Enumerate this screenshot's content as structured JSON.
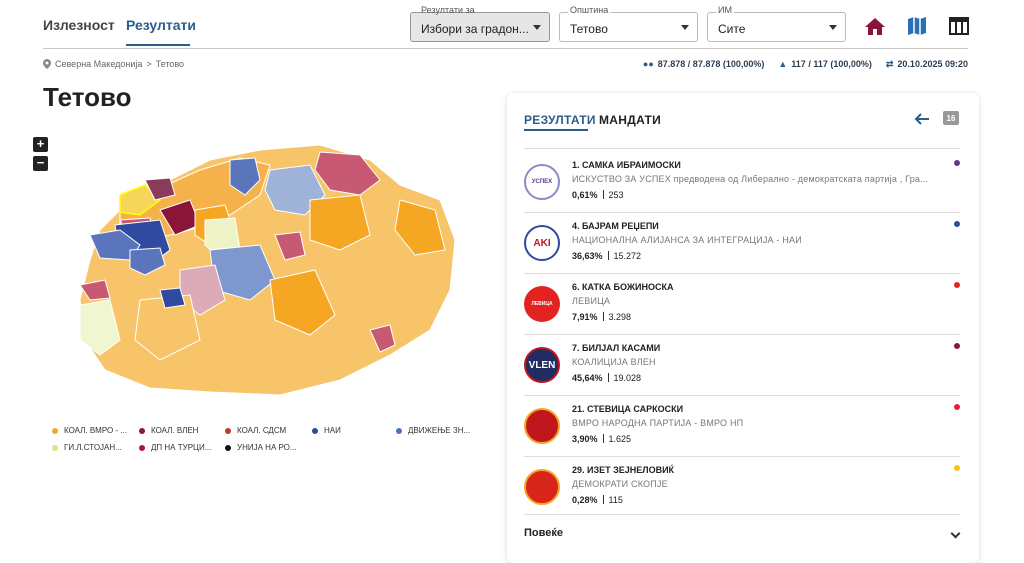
{
  "tabs": [
    {
      "label": "Излезност"
    },
    {
      "label": "Резултати"
    }
  ],
  "filters": {
    "results_for": {
      "label": "Резултати за",
      "value": "Избори за градон..."
    },
    "municipality": {
      "label": "Општина",
      "value": "Тетово"
    },
    "im": {
      "label": "ИМ",
      "value": "Сите"
    }
  },
  "toolbar_icons": [
    "home-icon",
    "map-icon",
    "table-icon"
  ],
  "breadcrumb": {
    "country": "Северна Македонија",
    "sep": ">",
    "city": "Тетово"
  },
  "stats": {
    "voters": "87.878 / 87.878 (100,00%)",
    "stations": "117 / 117 (100,00%)",
    "timestamp": "20.10.2025 09:20"
  },
  "page_title": "Тетово",
  "zoom": {
    "in": "+",
    "out": "−"
  },
  "legend": [
    {
      "label": "КОАЛ. ВМРО - ...",
      "color": "#f5a623"
    },
    {
      "label": "КОАЛ. ВЛЕН",
      "color": "#8b1538"
    },
    {
      "label": "КОАЛ. СДСМ",
      "color": "#c0392b"
    },
    {
      "label": "НАИ",
      "color": "#2f4a9e"
    },
    {
      "label": "ДВИЖЕЊЕ ЗН...",
      "color": "#4a6fbf"
    },
    {
      "label": "ГИ.Л.СТОЈАН...",
      "color": "#d4e88a"
    },
    {
      "label": "ДП НА ТУРЦИ...",
      "color": "#b0163a"
    },
    {
      "label": "УНИЈА НА РО...",
      "color": "#111111"
    }
  ],
  "panel": {
    "tabs": [
      {
        "label": "РЕЗУЛТАТИ"
      },
      {
        "label": "МАНДАТИ"
      }
    ],
    "badge": "16",
    "candidates": [
      {
        "name": "1. САМКА ИБРАИМОСКИ",
        "party": "ИСКУСТВО ЗА УСПЕХ предводена од Либерално - демократската партија , Гра...",
        "pct": "0,61%",
        "votes": "253",
        "color": "#5b3a8c"
      },
      {
        "name": "4. БАЈРАМ РЕЏЕПИ",
        "party": "НАЦИОНАЛНА АЛИЈАНСА ЗА ИНТЕГРАЦИЈА - НАИ",
        "pct": "36,63%",
        "votes": "15.272",
        "color": "#2f4a9e"
      },
      {
        "name": "6. КАТКА БОЖИНОСКА",
        "party": "ЛЕВИЦА",
        "pct": "7,91%",
        "votes": "3.298",
        "color": "#e32222"
      },
      {
        "name": "7. БИЛЈАЛ КАСАМИ",
        "party": "КОАЛИЦИЈА ВЛЕН",
        "pct": "45,64%",
        "votes": "19.028",
        "color": "#8b1538"
      },
      {
        "name": "21. СТЕВИЦА САРКОСКИ",
        "party": "ВМРО НАРОДНА ПАРТИЈА - ВМРО НП",
        "pct": "3,90%",
        "votes": "1.625",
        "color": "#e3223a"
      },
      {
        "name": "29. ИЗЕТ ЗЕЈНЕЛОВИЌ",
        "party": "ДЕМОКРАТИ СКОПЈЕ",
        "pct": "0,28%",
        "votes": "115",
        "color": "#f5c518"
      }
    ],
    "logos": [
      "УСПЕХ",
      "AKI",
      "ЛЕВИЦА",
      "VLEN",
      "",
      ""
    ],
    "more_label": "Повеќе"
  }
}
